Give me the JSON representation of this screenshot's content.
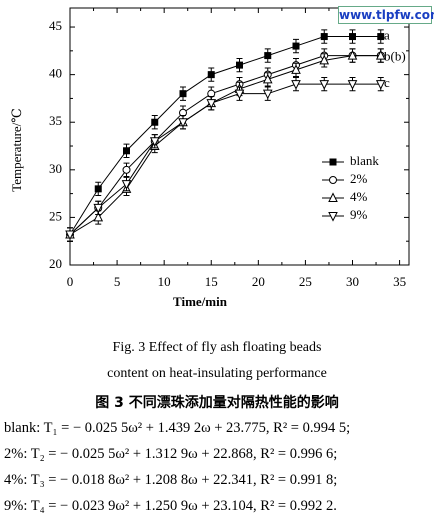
{
  "chart_data": {
    "type": "line",
    "x_label": "Time/min",
    "y_label": "Temperature/℃",
    "x": [
      0,
      3,
      6,
      9,
      12,
      15,
      18,
      21,
      24,
      27,
      30,
      33
    ],
    "series": [
      {
        "name": "blank",
        "color": "#000000",
        "marker": "square",
        "error": 0.7,
        "values": [
          23.2,
          28,
          32,
          35,
          38,
          40,
          41,
          42,
          43,
          44,
          44,
          44
        ]
      },
      {
        "name": "2%",
        "color": "#000000",
        "marker": "circle",
        "error": 0.7,
        "values": [
          23.2,
          26,
          30,
          33,
          36,
          38,
          39,
          40,
          41,
          42,
          42,
          42
        ]
      },
      {
        "name": "4%",
        "color": "#000000",
        "marker": "triangle-up",
        "error": 0.7,
        "values": [
          23.2,
          25,
          28,
          32.5,
          35,
          37,
          38.5,
          39.5,
          40.5,
          41.5,
          42,
          42
        ]
      },
      {
        "name": "9%",
        "color": "#000000",
        "marker": "triangle-down",
        "error": 0.7,
        "values": [
          23.2,
          26,
          28.5,
          33,
          35,
          37,
          38,
          38,
          39,
          39,
          39,
          39
        ]
      }
    ],
    "annotations": [
      "a",
      "b(b)",
      "c"
    ],
    "xlim": [
      0,
      36
    ],
    "ylim": [
      20,
      47
    ],
    "xticks": [
      0,
      5,
      10,
      15,
      20,
      25,
      30,
      35
    ],
    "yticks": [
      20,
      25,
      30,
      35,
      40,
      45
    ],
    "legend": "right"
  },
  "watermark": "www.tlpfw.com",
  "caption": [
    "Fig. 3   Effect of fly ash floating beads",
    "content on heat-insulating performance"
  ],
  "caption_cn": "图 3   不同漂珠添加量对隔热性能的影响",
  "equations": [
    "blank: T₁ = − 0.025 5ω² + 1.439 2ω + 23.775, R² = 0.994 5;",
    "2%: T₂ = − 0.025 5ω² + 1.312 9ω + 22.868, R² = 0.996 6;",
    "4%: T₃ = − 0.018 8ω² + 1.208 8ω + 22.341, R² = 0.991 8;",
    "9%: T₄ = − 0.023 9ω² + 1.250 9ω + 23.104, R² = 0.992 2."
  ]
}
